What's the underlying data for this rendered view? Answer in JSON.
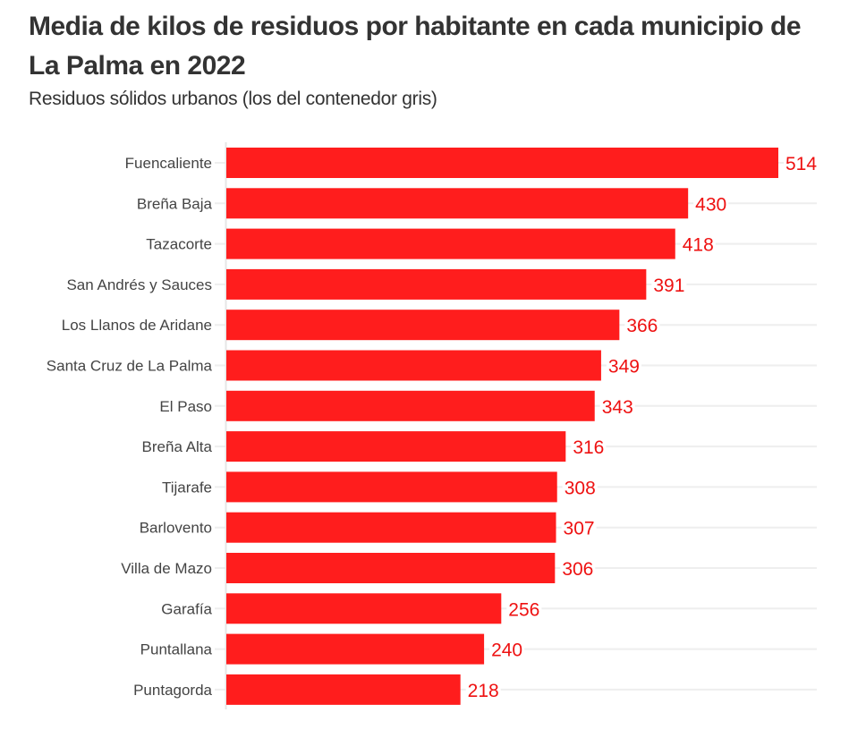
{
  "title": "Media de kilos de residuos por habitante en cada municipio de La Palma en 2022",
  "subtitle": "Residuos sólidos urbanos (los del contenedor gris)",
  "colors": {
    "bar": "#ff1d1d",
    "value_label": "#ee1111",
    "grid": "#eeeeee",
    "text": "#333333"
  },
  "chart_data": {
    "type": "bar",
    "orientation": "horizontal",
    "title": "Media de kilos de residuos por habitante en cada municipio de La Palma en 2022",
    "subtitle": "Residuos sólidos urbanos (los del contenedor gris)",
    "xlabel": "",
    "ylabel": "",
    "categories": [
      "Fuencaliente",
      "Breña Baja",
      "Tazacorte",
      "San Andrés y Sauces",
      "Los Llanos de Aridane",
      "Santa Cruz de La Palma",
      "El Paso",
      "Breña Alta",
      "Tijarafe",
      "Barlovento",
      "Villa de Mazo",
      "Garafía",
      "Puntallana",
      "Puntagorda"
    ],
    "values": [
      514,
      430,
      418,
      391,
      366,
      349,
      343,
      316,
      308,
      307,
      306,
      256,
      240,
      218
    ],
    "xlim": [
      0,
      550
    ],
    "grid": true,
    "legend": "none",
    "data_labels": true
  }
}
